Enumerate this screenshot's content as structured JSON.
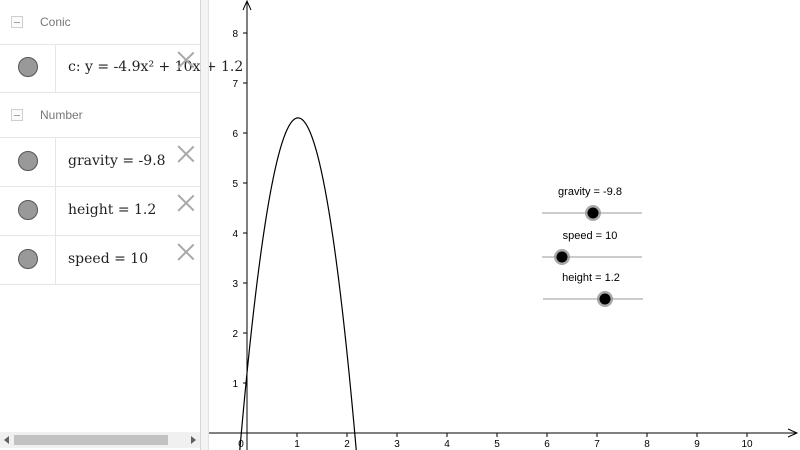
{
  "algebra": {
    "groups": [
      {
        "label": "Conic"
      },
      {
        "label": "Number"
      }
    ],
    "rows": [
      {
        "text": "c: y = -4.9x² + 10x + 1.2"
      },
      {
        "text": "gravity = -9.8"
      },
      {
        "text": "height = 1.2"
      },
      {
        "text": "speed = 10"
      }
    ]
  },
  "graph": {
    "x_ticks": [
      "0",
      "1",
      "2",
      "3",
      "4",
      "5",
      "6",
      "7",
      "8",
      "9",
      "10"
    ],
    "y_ticks": [
      "1",
      "2",
      "3",
      "4",
      "5",
      "6",
      "7",
      "8"
    ],
    "xlim": [
      -0.75,
      11
    ],
    "ylim": [
      0,
      8.8
    ],
    "curve": {
      "a": -4.9,
      "b": 10,
      "c": 1.2,
      "color": "#000000"
    },
    "sliders": [
      {
        "label": "gravity = -9.8",
        "min": -20,
        "max": 0,
        "value": -9.8
      },
      {
        "label": "speed = 10",
        "min": 0,
        "max": 50,
        "value": 10
      },
      {
        "label": "height = 1.2",
        "min": -5,
        "max": 5,
        "value": 1.2
      }
    ]
  }
}
